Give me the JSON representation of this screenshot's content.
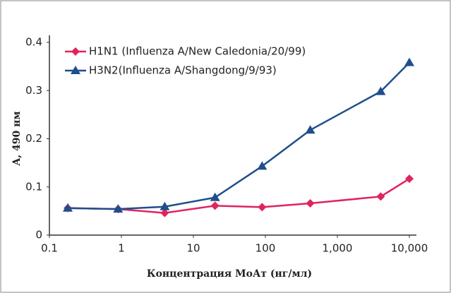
{
  "chart_data": {
    "type": "line",
    "xlabel": "Концентрация МоАт (нг/мл)",
    "ylabel": "A, 490 нм",
    "x": [
      0.18,
      0.9,
      4,
      20,
      90,
      420,
      4000,
      10000
    ],
    "xscale": "log",
    "xlim": [
      0.1,
      10000
    ],
    "xticks": [
      0.1,
      1,
      10,
      100,
      {
        "value": 1000,
        "label": "1,000"
      },
      {
        "value": 10000,
        "label": "10,000"
      }
    ],
    "ylim": [
      0,
      0.4
    ],
    "yticks": [
      0,
      0.1,
      0.2,
      0.3,
      0.4
    ],
    "grid": false,
    "legend": "upper left",
    "series": [
      {
        "name": "H1N1 (Influenza A/New Caledonia/20/99)",
        "color": "#e0245e",
        "marker": "diamond",
        "values": [
          0.056,
          0.054,
          0.046,
          0.061,
          0.058,
          0.066,
          0.08,
          0.117
        ]
      },
      {
        "name": "H3N2(Influenza A/Shangdong/9/93)",
        "color": "#1f4e8c",
        "marker": "triangle",
        "values": [
          0.056,
          0.054,
          0.059,
          0.078,
          0.143,
          0.218,
          0.298,
          0.358
        ]
      }
    ]
  }
}
